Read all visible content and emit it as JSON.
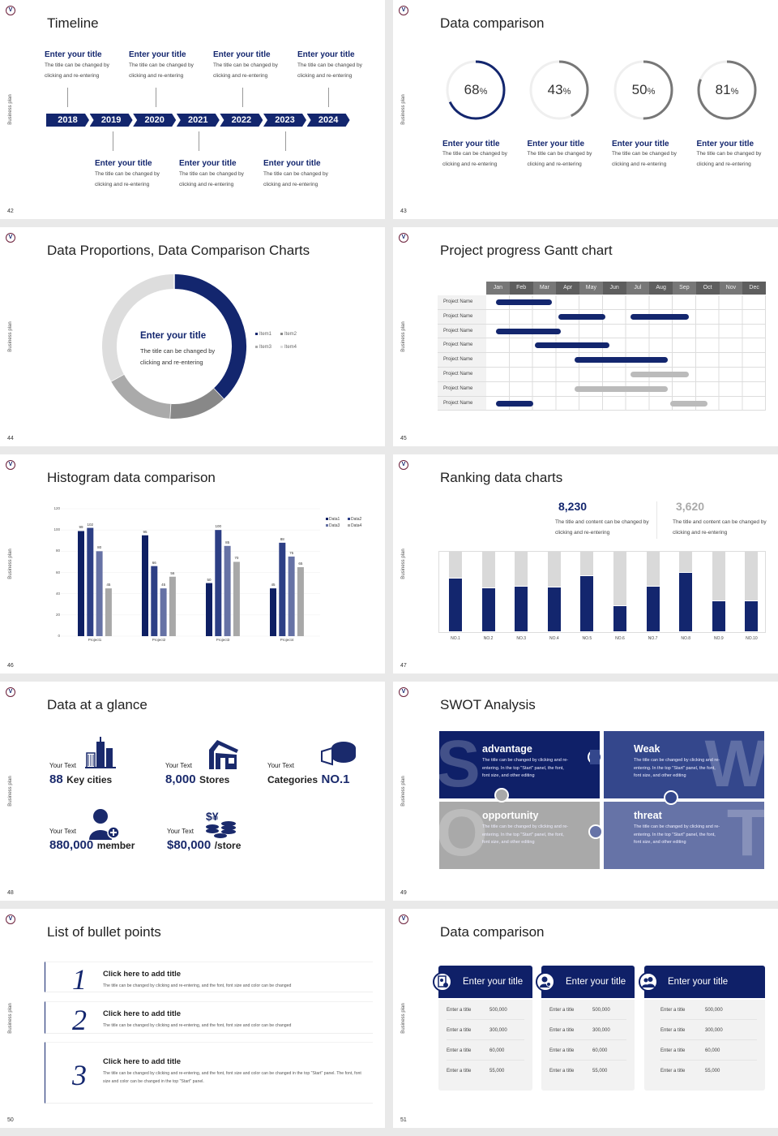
{
  "common": {
    "side_label": "Business plan",
    "brand_color": "#13266e",
    "logo_letter": "V"
  },
  "s42": {
    "page": "42",
    "title": "Timeline",
    "years": [
      "2018",
      "2019",
      "2020",
      "2021",
      "2022",
      "2023",
      "2024"
    ],
    "top_items": [
      {
        "title": "Enter your title",
        "desc": "The title can be changed by clicking and re-entering"
      },
      {
        "title": "Enter your title",
        "desc": "The title can be changed by clicking and re-entering"
      },
      {
        "title": "Enter your title",
        "desc": "The title can be changed by clicking and re-entering"
      },
      {
        "title": "Enter your title",
        "desc": "The title can be changed by clicking and re-entering"
      }
    ],
    "bottom_items": [
      {
        "title": "Enter your title",
        "desc": "The title can be changed by clicking and re-entering"
      },
      {
        "title": "Enter your title",
        "desc": "The title can be changed by clicking and re-entering"
      },
      {
        "title": "Enter your title",
        "desc": "The title can be changed by clicking and re-entering"
      }
    ]
  },
  "s43": {
    "page": "43",
    "title": "Data comparison",
    "rings": [
      {
        "value": "68",
        "unit": "%",
        "percent": 68,
        "color": "#13266e",
        "title": "Enter your title",
        "desc": "The title can be changed by clicking and re-entering"
      },
      {
        "value": "43",
        "unit": "%",
        "percent": 43,
        "color": "#777777",
        "title": "Enter your title",
        "desc": "The title can be changed by clicking and re-entering"
      },
      {
        "value": "50",
        "unit": "%",
        "percent": 50,
        "color": "#777777",
        "title": "Enter your title",
        "desc": "The title can be changed by clicking and re-entering"
      },
      {
        "value": "81",
        "unit": "%",
        "percent": 81,
        "color": "#777777",
        "title": "Enter your title",
        "desc": "The title can be changed by clicking and re-entering"
      }
    ]
  },
  "s44": {
    "page": "44",
    "title": "Data Proportions, Data Comparison Charts",
    "center_title": "Enter your title",
    "center_desc": "The title can be changed by clicking and re-entering",
    "chart_data": {
      "type": "pie",
      "donut": true,
      "categories": [
        "Item1",
        "Item2",
        "Item3",
        "Item4"
      ],
      "values": [
        38,
        13,
        16,
        33
      ],
      "colors": [
        "#13266e",
        "#888888",
        "#aaaaaa",
        "#dddddd"
      ],
      "legend": "right"
    }
  },
  "s45": {
    "page": "45",
    "title": "Project progress Gantt chart",
    "chart_data": {
      "type": "gantt",
      "months": [
        "Jan",
        "Feb",
        "Mar",
        "Apr",
        "May",
        "Jun",
        "Jul",
        "Aug",
        "Sep",
        "Oct",
        "Nov",
        "Dec"
      ],
      "rows": [
        {
          "label": "Project Name",
          "bars": [
            {
              "start": 0.4,
              "end": 2.8,
              "color": "#13266e"
            }
          ]
        },
        {
          "label": "Project Name",
          "bars": [
            {
              "start": 3.1,
              "end": 5.1,
              "color": "#13266e"
            },
            {
              "start": 6.2,
              "end": 8.7,
              "color": "#13266e"
            }
          ]
        },
        {
          "label": "Project Name",
          "bars": [
            {
              "start": 0.4,
              "end": 3.2,
              "color": "#13266e"
            }
          ]
        },
        {
          "label": "Project Name",
          "bars": [
            {
              "start": 2.1,
              "end": 5.3,
              "color": "#13266e"
            }
          ]
        },
        {
          "label": "Project Name",
          "bars": [
            {
              "start": 3.8,
              "end": 7.8,
              "color": "#13266e"
            }
          ]
        },
        {
          "label": "Project Name",
          "bars": [
            {
              "start": 6.2,
              "end": 8.7,
              "color": "#bbbbbb"
            }
          ]
        },
        {
          "label": "Project Name",
          "bars": [
            {
              "start": 3.8,
              "end": 7.8,
              "color": "#bbbbbb"
            }
          ]
        },
        {
          "label": "Project Name",
          "bars": [
            {
              "start": 0.4,
              "end": 2.0,
              "color": "#13266e"
            },
            {
              "start": 7.9,
              "end": 9.5,
              "color": "#bbbbbb"
            }
          ]
        }
      ]
    }
  },
  "s46": {
    "page": "46",
    "title": "Histogram data comparison",
    "chart_data": {
      "type": "bar",
      "categories": [
        "Project1",
        "Project2",
        "Project3",
        "Project4"
      ],
      "ylim": [
        0,
        120
      ],
      "yticks": [
        "0",
        "20",
        "40",
        "60",
        "80",
        "100",
        "120"
      ],
      "legend": "top-right",
      "grid": true,
      "series": [
        {
          "name": "Data1",
          "color": "#0e1f63",
          "values": [
            99,
            95,
            50,
            45
          ]
        },
        {
          "name": "Data2",
          "color": "#2d3f85",
          "values": [
            102,
            66,
            100,
            88
          ]
        },
        {
          "name": "Data3",
          "color": "#6672a5",
          "values": [
            80,
            45,
            85,
            75
          ]
        },
        {
          "name": "Data4",
          "color": "#a8a8a8",
          "values": [
            45,
            56,
            70,
            65
          ]
        }
      ]
    }
  },
  "s47": {
    "page": "47",
    "title": "Ranking data charts",
    "stats": [
      {
        "value": "8,230",
        "desc": "The title and content can be changed by clicking and re-entering",
        "color": "#13266e"
      },
      {
        "value": "3,620",
        "desc": "The title and content can be changed by clicking and re-entering",
        "color": "#aaaaaa"
      }
    ],
    "chart_data": {
      "type": "bar",
      "stacked": true,
      "categories": [
        "NO.1",
        "NO.2",
        "NO.3",
        "NO.4",
        "NO.5",
        "NO.6",
        "NO.7",
        "NO.8",
        "NO.9",
        "NO.10"
      ],
      "values": [
        0.67,
        0.55,
        0.57,
        0.56,
        0.7,
        0.33,
        0.57,
        0.75,
        0.39,
        0.39
      ],
      "ylim": [
        0,
        1
      ]
    }
  },
  "s48": {
    "page": "48",
    "title": "Data at a glance",
    "items": [
      {
        "label": "Your Text",
        "num": "88",
        "unit": "Key cities",
        "icon": "city-icon"
      },
      {
        "label": "Your Text",
        "num": "8,000",
        "unit": "Stores",
        "icon": "store-icon"
      },
      {
        "label": "Your Text",
        "unit": "Categories",
        "num": "NO.1",
        "icon": "pie-chart-icon"
      },
      {
        "label": "Your Text",
        "num": "880,000",
        "unit": "member",
        "icon": "add-user-icon"
      },
      {
        "label": "Your Text",
        "num": "$80,000",
        "unit": "/store",
        "icon": "coins-icon"
      }
    ]
  },
  "s49": {
    "page": "49",
    "title": "SWOT Analysis",
    "quadrants": [
      {
        "letter": "S",
        "title": "advantage",
        "desc": "The title can be changed by clicking and re-entering. In the top \"Start\" panel, the font, font size, and other editing",
        "color": "#0f2068"
      },
      {
        "letter": "W",
        "title": "Weak",
        "desc": "The title can be changed by clicking and re-entering. In the top \"Start\" panel, the font, font size, and other editing",
        "color": "#34478c"
      },
      {
        "letter": "O",
        "title": "opportunity",
        "desc": "The title can be changed by clicking and re-entering. In the top \"Start\" panel, the font, font size, and other editing",
        "color": "#a9a9a9"
      },
      {
        "letter": "T",
        "title": "threat",
        "desc": "The title can be changed by clicking and re-entering. In the top \"Start\" panel, the font, font size, and other editing",
        "color": "#6673a7"
      }
    ]
  },
  "s50": {
    "page": "50",
    "title": "List of bullet points",
    "items": [
      {
        "num": "1",
        "title": "Click here to add title",
        "desc": "The title can be changed by clicking and re-entering, and the font, font size and color can be changed"
      },
      {
        "num": "2",
        "title": "Click here to add title",
        "desc": "The title can be changed by clicking and re-entering, and the font, font size and color can be changed"
      },
      {
        "num": "3",
        "title": "Click here to add title",
        "desc": "The title can be changed by clicking and re-entering, and the font, font size and color can be changed in the top \"Start\" panel. The font, font size and color can be changed in the top \"Start\" panel."
      }
    ]
  },
  "s51": {
    "page": "51",
    "title": "Data comparison",
    "cards": [
      {
        "title": "Enter your title",
        "icon": "tablet-user-icon",
        "rows": [
          {
            "label": "Enter a title",
            "value": "500,000"
          },
          {
            "label": "Enter a title",
            "value": "300,000"
          },
          {
            "label": "Enter a title",
            "value": "60,000"
          },
          {
            "label": "Enter a title",
            "value": "55,000"
          }
        ]
      },
      {
        "title": "Enter your title",
        "icon": "user-info-icon",
        "rows": [
          {
            "label": "Enter a title",
            "value": "500,000"
          },
          {
            "label": "Enter a title",
            "value": "300,000"
          },
          {
            "label": "Enter a title",
            "value": "60,000"
          },
          {
            "label": "Enter a title",
            "value": "55,000"
          }
        ]
      },
      {
        "title": "Enter your title",
        "icon": "team-icon",
        "rows": [
          {
            "label": "Enter a title",
            "value": "500,000"
          },
          {
            "label": "Enter a title",
            "value": "300,000"
          },
          {
            "label": "Enter a title",
            "value": "60,000"
          },
          {
            "label": "Enter a title",
            "value": "55,000"
          }
        ]
      }
    ]
  }
}
